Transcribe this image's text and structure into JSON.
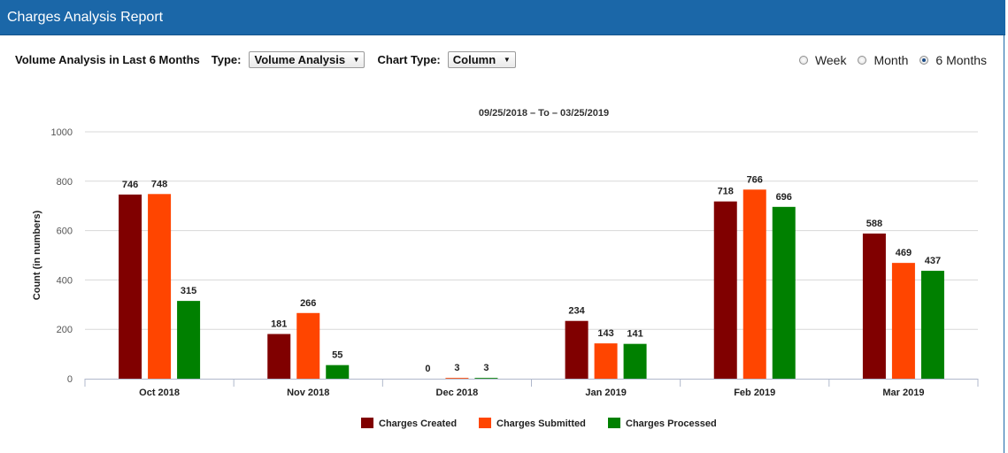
{
  "header": {
    "title": "Charges Analysis Report"
  },
  "controls": {
    "heading": "Volume Analysis in Last 6 Months",
    "type_label": "Type:",
    "type_value": "Volume Analysis",
    "chart_type_label": "Chart Type:",
    "chart_type_value": "Column",
    "period_options": [
      {
        "label": "Week",
        "selected": false
      },
      {
        "label": "Month",
        "selected": false
      },
      {
        "label": "6 Months",
        "selected": true
      }
    ]
  },
  "chart_data": {
    "type": "bar",
    "title": "09/25/2018 – To – 03/25/2019",
    "ylabel": "Count (in numbers)",
    "xlabel": "",
    "ylim": [
      0,
      1000
    ],
    "yticks": [
      0,
      200,
      400,
      600,
      800,
      1000
    ],
    "grid": true,
    "legend_position": "bottom",
    "categories": [
      "Oct 2018",
      "Nov 2018",
      "Dec 2018",
      "Jan 2019",
      "Feb 2019",
      "Mar 2019"
    ],
    "series": [
      {
        "name": "Charges Created",
        "color": "#800000",
        "values": [
          746,
          181,
          0,
          234,
          718,
          588
        ]
      },
      {
        "name": "Charges Submitted",
        "color": "#ff4500",
        "values": [
          748,
          266,
          3,
          143,
          766,
          469
        ]
      },
      {
        "name": "Charges Processed",
        "color": "#008000",
        "values": [
          315,
          55,
          3,
          141,
          696,
          437
        ]
      }
    ]
  }
}
